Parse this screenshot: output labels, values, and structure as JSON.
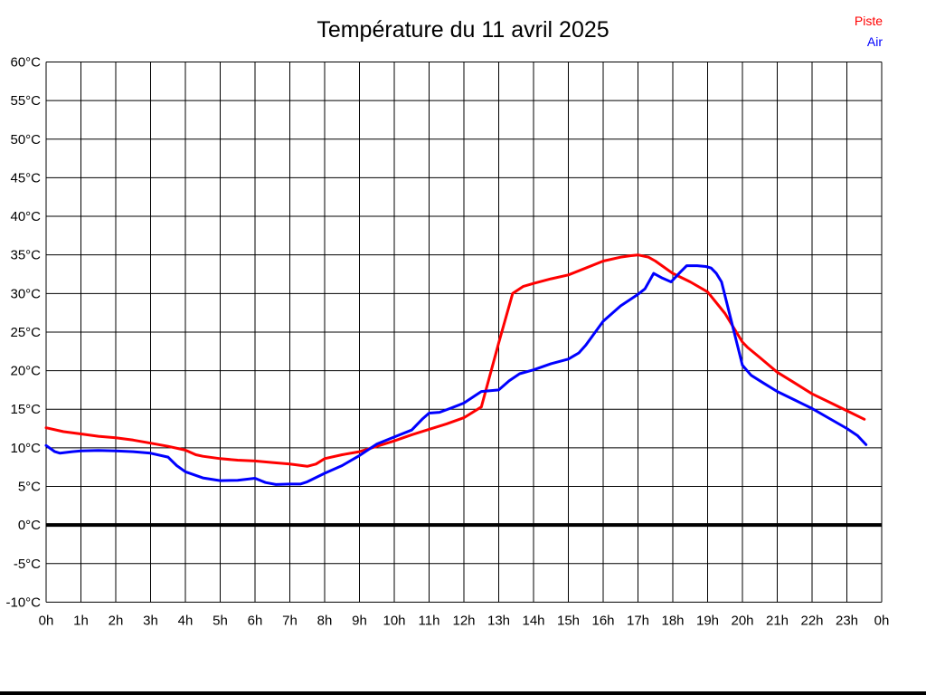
{
  "title": "Température du 11 avril 2025",
  "legend": {
    "items": [
      {
        "label": "Piste",
        "color": "#ff0000"
      },
      {
        "label": "Air",
        "color": "#0000ff"
      }
    ]
  },
  "colors": {
    "piste": "#ff0000",
    "air": "#0000ff",
    "grid": "#000000",
    "background": "#ffffff"
  },
  "chart_data": {
    "type": "line",
    "title": "Température du 11 avril 2025",
    "xlabel": "",
    "ylabel": "",
    "x_unit": "hour of day",
    "y_unit": "°C",
    "xlim": [
      0,
      24
    ],
    "ylim": [
      -10,
      60
    ],
    "grid": {
      "x_step_hours": 1,
      "y_step_deg": 5,
      "zero_line_bold": true
    },
    "legend_position": "top-right",
    "x_tick_hours": [
      0,
      1,
      2,
      3,
      4,
      5,
      6,
      7,
      8,
      9,
      10,
      11,
      12,
      13,
      14,
      15,
      16,
      17,
      18,
      19,
      20,
      21,
      22,
      23,
      24
    ],
    "x_tick_labels": [
      "0h",
      "1h",
      "2h",
      "3h",
      "4h",
      "5h",
      "6h",
      "7h",
      "8h",
      "9h",
      "10h",
      "11h",
      "12h",
      "13h",
      "14h",
      "15h",
      "16h",
      "17h",
      "18h",
      "19h",
      "20h",
      "21h",
      "22h",
      "23h",
      "0h"
    ],
    "y_tick_values": [
      60,
      55,
      50,
      45,
      40,
      35,
      30,
      25,
      20,
      15,
      10,
      5,
      0,
      -5,
      -10
    ],
    "y_tick_labels": [
      "60°C",
      "55°C",
      "50°C",
      "45°C",
      "40°C",
      "35°C",
      "30°C",
      "25°C",
      "20°C",
      "15°C",
      "10°C",
      "5°C",
      "0°C",
      "-5°C",
      "-10°C"
    ],
    "series": [
      {
        "name": "Piste",
        "color": "#ff0000",
        "points": [
          [
            0,
            12.6
          ],
          [
            0.5,
            12.1
          ],
          [
            1,
            11.8
          ],
          [
            1.5,
            11.5
          ],
          [
            2,
            11.3
          ],
          [
            2.5,
            11.0
          ],
          [
            3,
            10.6
          ],
          [
            3.5,
            10.2
          ],
          [
            4,
            9.7
          ],
          [
            4.3,
            9.1
          ],
          [
            4.5,
            8.9
          ],
          [
            5,
            8.6
          ],
          [
            5.5,
            8.4
          ],
          [
            6,
            8.3
          ],
          [
            6.5,
            8.1
          ],
          [
            7,
            7.9
          ],
          [
            7.5,
            7.6
          ],
          [
            7.75,
            7.9
          ],
          [
            8,
            8.6
          ],
          [
            8.5,
            9.1
          ],
          [
            9,
            9.5
          ],
          [
            9.5,
            10.2
          ],
          [
            10,
            10.9
          ],
          [
            10.5,
            11.7
          ],
          [
            11,
            12.4
          ],
          [
            11.5,
            13.1
          ],
          [
            12,
            13.9
          ],
          [
            12.5,
            15.3
          ],
          [
            13,
            23.6
          ],
          [
            13.4,
            30.0
          ],
          [
            13.7,
            30.9
          ],
          [
            14,
            31.3
          ],
          [
            14.5,
            31.9
          ],
          [
            15,
            32.4
          ],
          [
            15.5,
            33.3
          ],
          [
            16,
            34.2
          ],
          [
            16.5,
            34.7
          ],
          [
            16.8,
            34.9
          ],
          [
            17,
            35.0
          ],
          [
            17.3,
            34.7
          ],
          [
            17.5,
            34.2
          ],
          [
            18,
            32.6
          ],
          [
            18.5,
            31.5
          ],
          [
            19,
            30.2
          ],
          [
            19.5,
            27.4
          ],
          [
            20,
            23.7
          ],
          [
            20.15,
            23.0
          ],
          [
            20.5,
            21.7
          ],
          [
            21,
            19.8
          ],
          [
            21.5,
            18.4
          ],
          [
            22,
            17.0
          ],
          [
            22.5,
            15.9
          ],
          [
            23,
            14.8
          ],
          [
            23.5,
            13.7
          ]
        ]
      },
      {
        "name": "Air",
        "color": "#0000ff",
        "points": [
          [
            0,
            10.3
          ],
          [
            0.25,
            9.5
          ],
          [
            0.4,
            9.3
          ],
          [
            0.75,
            9.5
          ],
          [
            1,
            9.6
          ],
          [
            1.5,
            9.65
          ],
          [
            2,
            9.6
          ],
          [
            2.5,
            9.5
          ],
          [
            3,
            9.3
          ],
          [
            3.5,
            8.8
          ],
          [
            3.75,
            7.7
          ],
          [
            4,
            6.9
          ],
          [
            4.5,
            6.1
          ],
          [
            5,
            5.75
          ],
          [
            5.5,
            5.8
          ],
          [
            6,
            6.05
          ],
          [
            6.3,
            5.5
          ],
          [
            6.6,
            5.25
          ],
          [
            7,
            5.3
          ],
          [
            7.3,
            5.3
          ],
          [
            7.5,
            5.6
          ],
          [
            8,
            6.7
          ],
          [
            8.5,
            7.7
          ],
          [
            9,
            9.0
          ],
          [
            9.5,
            10.5
          ],
          [
            10,
            11.4
          ],
          [
            10.5,
            12.3
          ],
          [
            10.8,
            13.7
          ],
          [
            11,
            14.5
          ],
          [
            11.3,
            14.6
          ],
          [
            11.6,
            15.1
          ],
          [
            12,
            15.8
          ],
          [
            12.3,
            16.7
          ],
          [
            12.5,
            17.3
          ],
          [
            13,
            17.5
          ],
          [
            13.3,
            18.7
          ],
          [
            13.6,
            19.6
          ],
          [
            14,
            20.1
          ],
          [
            14.5,
            20.9
          ],
          [
            15,
            21.5
          ],
          [
            15.3,
            22.3
          ],
          [
            15.5,
            23.3
          ],
          [
            16,
            26.4
          ],
          [
            16.5,
            28.4
          ],
          [
            17,
            29.9
          ],
          [
            17.2,
            30.6
          ],
          [
            17.45,
            32.6
          ],
          [
            17.7,
            32.0
          ],
          [
            17.95,
            31.5
          ],
          [
            18.2,
            32.7
          ],
          [
            18.4,
            33.6
          ],
          [
            18.7,
            33.6
          ],
          [
            18.95,
            33.5
          ],
          [
            19.1,
            33.3
          ],
          [
            19.25,
            32.6
          ],
          [
            19.4,
            31.5
          ],
          [
            20,
            20.7
          ],
          [
            20.25,
            19.4
          ],
          [
            20.6,
            18.4
          ],
          [
            21,
            17.3
          ],
          [
            21.5,
            16.2
          ],
          [
            22,
            15.1
          ],
          [
            22.5,
            13.8
          ],
          [
            23,
            12.5
          ],
          [
            23.3,
            11.6
          ],
          [
            23.55,
            10.4
          ]
        ]
      }
    ]
  }
}
